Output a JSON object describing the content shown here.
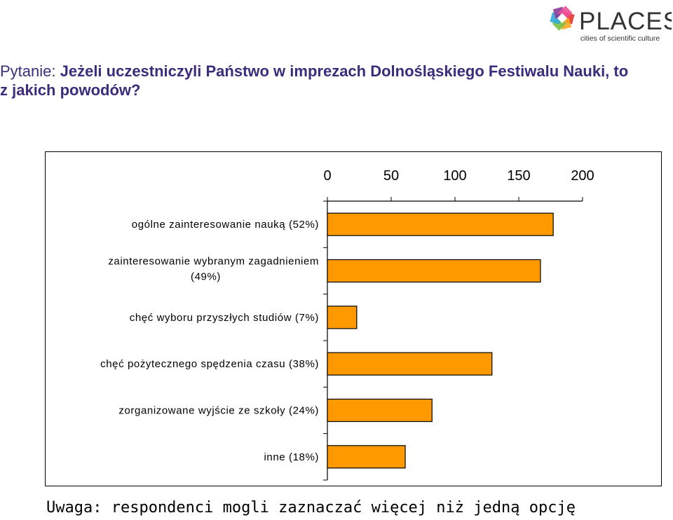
{
  "logo": {
    "name": "PLACES",
    "tagline": "cities of scientific culture",
    "colors": [
      "#e8312f",
      "#f7a823",
      "#7bc144",
      "#2fa8d9",
      "#8e3c97",
      "#f04e98"
    ]
  },
  "question": {
    "prefix": "Pytanie: ",
    "text": "Jeżeli uczestniczyli Państwo w imprezach Dolnośląskiego Festiwalu Nauki, to z jakich powodów?"
  },
  "chart_data": {
    "type": "bar",
    "orientation": "horizontal",
    "categories": [
      "ogólne zainteresowanie nauką (52%)",
      "zainteresowanie wybranym zagadnieniem (49%)",
      "chęć wyboru przyszłych studiów (7%)",
      "chęć pożytecznego spędzenia czasu (38%)",
      "zorganizowane wyjście ze szkoły (24%)",
      "inne (18%)"
    ],
    "values": [
      177,
      167,
      23,
      129,
      82,
      61
    ],
    "xlim": [
      0,
      200
    ],
    "x_ticks": [
      "0",
      "50",
      "100",
      "150",
      "200"
    ],
    "x_axis_position": "top",
    "bar_color": "#ff9900",
    "grid": false,
    "legend": "none"
  },
  "footnote": "Uwaga: respondenci mogli zaznaczać więcej niż jedną opcję"
}
